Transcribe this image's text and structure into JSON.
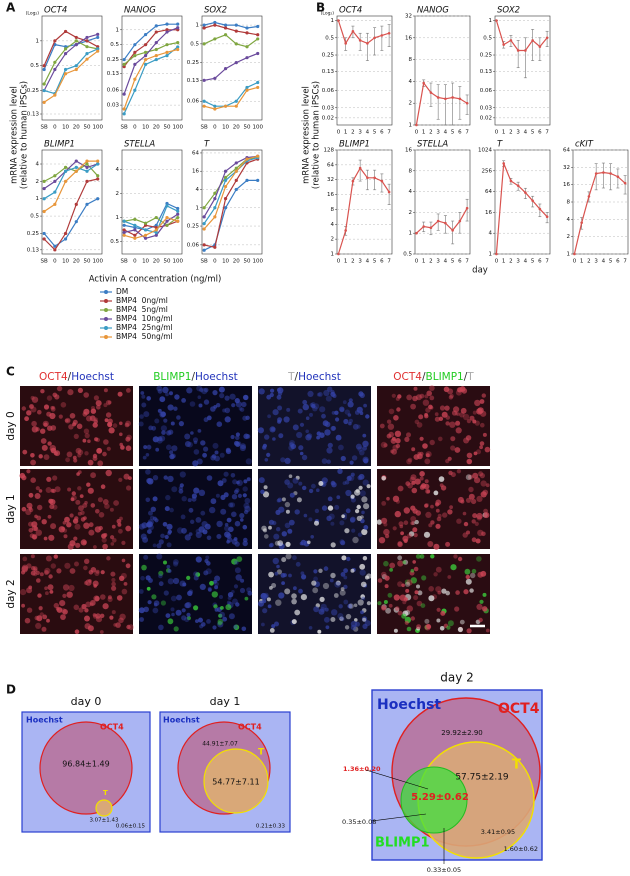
{
  "figure": {
    "panel_labels": [
      "A",
      "B",
      "C",
      "D"
    ],
    "a_y_label": [
      "mRNA expression level",
      "(relative to human iPSCs)"
    ],
    "a_x_label": "Activin A concentration (ng/ml)",
    "b_y_label": [
      "mRNA expression level",
      "(relative to human iPSCs)"
    ],
    "b_x_label": "day"
  },
  "chart_data": [
    {
      "type": "line",
      "title": "OCT4",
      "scale_label": "(Log₂)",
      "log_scale": true,
      "grid": true,
      "categories": [
        "SB",
        "0",
        "10",
        "20",
        "50",
        "100"
      ],
      "ylim": [
        0.11,
        2
      ],
      "yticks": [
        0.13,
        0.25,
        0.5,
        1
      ],
      "series": [
        {
          "name": "DM",
          "color": "#3b7dc4",
          "values": [
            0.45,
            0.9,
            0.85,
            0.9,
            1.0,
            1.1
          ]
        },
        {
          "name": "BMP4  0ng/ml",
          "color": "#b03a3a",
          "values": [
            0.5,
            1.0,
            1.3,
            1.1,
            1.0,
            0.85
          ]
        },
        {
          "name": "BMP4  5ng/ml",
          "color": "#7fa640",
          "values": [
            0.3,
            0.55,
            0.8,
            1.0,
            0.85,
            0.8
          ]
        },
        {
          "name": "BMP4  10ng/ml",
          "color": "#6a4a9c",
          "values": [
            0.25,
            0.45,
            0.7,
            0.9,
            1.1,
            1.2
          ]
        },
        {
          "name": "BMP4  25ng/ml",
          "color": "#3a9cc4",
          "values": [
            0.25,
            0.23,
            0.45,
            0.5,
            0.7,
            0.8
          ]
        },
        {
          "name": "BMP4  50ng/ml",
          "color": "#e8963a",
          "values": [
            0.18,
            0.22,
            0.4,
            0.45,
            0.6,
            0.75
          ]
        }
      ]
    },
    {
      "type": "line",
      "title": "NANOG",
      "log_scale": true,
      "grid": true,
      "categories": [
        "SB",
        "0",
        "10",
        "20",
        "50",
        "100"
      ],
      "ylim": [
        0.015,
        1.9
      ],
      "yticks": [
        0.03,
        0.06,
        0.13,
        0.25,
        0.5,
        1
      ],
      "series": [
        {
          "color": "#3b7dc4",
          "values": [
            0.25,
            0.5,
            0.8,
            1.2,
            1.3,
            1.3
          ]
        },
        {
          "color": "#b03a3a",
          "values": [
            0.18,
            0.35,
            0.5,
            0.9,
            1.0,
            1.0
          ]
        },
        {
          "color": "#7fa640",
          "values": [
            0.2,
            0.3,
            0.35,
            0.4,
            0.5,
            0.55
          ]
        },
        {
          "color": "#6a4a9c",
          "values": [
            0.05,
            0.2,
            0.3,
            0.55,
            0.9,
            1.1
          ]
        },
        {
          "color": "#3a9cc4",
          "values": [
            0.02,
            0.06,
            0.2,
            0.25,
            0.3,
            0.45
          ]
        },
        {
          "color": "#e8963a",
          "values": [
            0.025,
            0.1,
            0.25,
            0.3,
            0.35,
            0.4
          ]
        }
      ]
    },
    {
      "type": "line",
      "title": "SOX2",
      "log_scale": true,
      "grid": true,
      "categories": [
        "SB",
        "0",
        "10",
        "20",
        "50",
        "100"
      ],
      "ylim": [
        0.03,
        1.4
      ],
      "yticks": [
        0.06,
        0.13,
        0.25,
        0.5,
        1
      ],
      "series": [
        {
          "color": "#3b7dc4",
          "values": [
            1.0,
            1.1,
            1.0,
            1.0,
            0.9,
            0.95
          ]
        },
        {
          "color": "#b03a3a",
          "values": [
            0.9,
            1.0,
            0.9,
            0.8,
            0.75,
            0.7
          ]
        },
        {
          "color": "#7fa640",
          "values": [
            0.5,
            0.6,
            0.7,
            0.5,
            0.45,
            0.6
          ]
        },
        {
          "color": "#6a4a9c",
          "values": [
            0.13,
            0.14,
            0.2,
            0.25,
            0.3,
            0.35
          ]
        },
        {
          "color": "#3a9cc4",
          "values": [
            0.06,
            0.05,
            0.05,
            0.06,
            0.1,
            0.12
          ]
        },
        {
          "color": "#e8963a",
          "values": [
            0.05,
            0.045,
            0.05,
            0.05,
            0.09,
            0.1
          ]
        }
      ]
    },
    {
      "type": "line",
      "title": "BLIMP1",
      "log_scale": true,
      "grid": true,
      "categories": [
        "SB",
        "0",
        "10",
        "20",
        "50",
        "100"
      ],
      "ylim": [
        0.11,
        7
      ],
      "yticks": [
        0.13,
        0.25,
        0.5,
        1,
        2,
        4
      ],
      "series": [
        {
          "color": "#3b7dc4",
          "values": [
            0.25,
            0.15,
            0.2,
            0.4,
            0.8,
            1.0
          ]
        },
        {
          "color": "#b03a3a",
          "values": [
            0.2,
            0.13,
            0.25,
            0.8,
            2,
            2.2
          ]
        },
        {
          "color": "#7fa640",
          "values": [
            2,
            2.5,
            3.5,
            3,
            4,
            2.5
          ]
        },
        {
          "color": "#6a4a9c",
          "values": [
            1.5,
            2,
            3,
            4.5,
            3.5,
            4
          ]
        },
        {
          "color": "#3a9cc4",
          "values": [
            1,
            1.3,
            3,
            3.5,
            3,
            4
          ]
        },
        {
          "color": "#e8963a",
          "values": [
            0.6,
            0.8,
            2,
            3,
            4.5,
            4.5
          ]
        }
      ]
    },
    {
      "type": "line",
      "title": "STELLA",
      "log_scale": true,
      "grid": true,
      "categories": [
        "SB",
        "0",
        "10",
        "20",
        "50",
        "100"
      ],
      "ylim": [
        0.35,
        7
      ],
      "yticks": [
        0.5,
        1,
        2,
        4
      ],
      "series": [
        {
          "color": "#3b7dc4",
          "values": [
            0.8,
            0.75,
            0.7,
            0.8,
            1.5,
            1.3
          ]
        },
        {
          "color": "#b03a3a",
          "values": [
            0.7,
            0.6,
            0.8,
            0.75,
            0.8,
            0.9
          ]
        },
        {
          "color": "#7fa640",
          "values": [
            0.9,
            0.95,
            0.85,
            1.0,
            0.8,
            1.0
          ]
        },
        {
          "color": "#6a4a9c",
          "values": [
            0.65,
            0.7,
            0.55,
            0.6,
            0.9,
            1.1
          ]
        },
        {
          "color": "#3a9cc4",
          "values": [
            0.9,
            0.8,
            0.7,
            0.65,
            1.4,
            1.2
          ]
        },
        {
          "color": "#e8963a",
          "values": [
            0.6,
            0.55,
            0.6,
            0.7,
            1.0,
            0.9
          ]
        }
      ]
    },
    {
      "type": "line",
      "title": "T",
      "log_scale": true,
      "grid": true,
      "categories": [
        "SB",
        "0",
        "10",
        "20",
        "50",
        "100"
      ],
      "ylim": [
        0.03,
        80
      ],
      "yticks": [
        0.06,
        0.25,
        1,
        4,
        16,
        64
      ],
      "series": [
        {
          "color": "#3b7dc4",
          "values": [
            0.04,
            0.06,
            1,
            4,
            8,
            8
          ]
        },
        {
          "color": "#b03a3a",
          "values": [
            0.06,
            0.05,
            2,
            8,
            30,
            40
          ]
        },
        {
          "color": "#7fa640",
          "values": [
            1,
            3,
            10,
            20,
            40,
            45
          ]
        },
        {
          "color": "#6a4a9c",
          "values": [
            0.5,
            2,
            16,
            30,
            45,
            50
          ]
        },
        {
          "color": "#3a9cc4",
          "values": [
            0.3,
            1,
            8,
            16,
            35,
            45
          ]
        },
        {
          "color": "#e8963a",
          "values": [
            0.2,
            0.5,
            5,
            16,
            40,
            50
          ]
        }
      ]
    },
    {
      "type": "line",
      "title": "OCT4",
      "scale_label": "(Log₂)",
      "log_scale": true,
      "grid": true,
      "categories": [
        "0",
        "1",
        "2",
        "3",
        "4",
        "5",
        "6",
        "7"
      ],
      "ylim": [
        0.015,
        1.2
      ],
      "yticks": [
        0.02,
        0.03,
        0.06,
        0.13,
        0.25,
        0.5,
        1
      ],
      "series": [
        {
          "color": "#d9534f",
          "values": [
            1,
            0.4,
            0.65,
            0.45,
            0.4,
            0.5,
            0.55,
            0.6
          ],
          "errors": [
            0,
            0.1,
            0.15,
            0.15,
            0.2,
            0.25,
            0.25,
            0.25
          ]
        }
      ]
    },
    {
      "type": "line",
      "title": "NANOG",
      "log_scale": true,
      "grid": true,
      "categories": [
        "0",
        "1",
        "2",
        "3",
        "4",
        "5",
        "6",
        "7"
      ],
      "ylim": [
        1,
        32
      ],
      "yticks": [
        1,
        2,
        4,
        8,
        16,
        32
      ],
      "series": [
        {
          "color": "#d9534f",
          "values": [
            1,
            3.8,
            2.8,
            2.4,
            2.3,
            2.4,
            2.3,
            2
          ],
          "errors": [
            0,
            0.4,
            1,
            1.2,
            1.3,
            1.4,
            1.1,
            0.6
          ]
        }
      ]
    },
    {
      "type": "line",
      "title": "SOX2",
      "log_scale": true,
      "grid": true,
      "categories": [
        "0",
        "1",
        "2",
        "3",
        "4",
        "5",
        "6",
        "7"
      ],
      "ylim": [
        0.015,
        1.2
      ],
      "yticks": [
        0.02,
        0.03,
        0.06,
        0.13,
        0.25,
        0.5,
        1
      ],
      "series": [
        {
          "color": "#d9534f",
          "values": [
            1,
            0.38,
            0.45,
            0.3,
            0.3,
            0.45,
            0.35,
            0.5
          ],
          "errors": [
            0,
            0.05,
            0.1,
            0.15,
            0.2,
            0.25,
            0.15,
            0.15
          ]
        }
      ]
    },
    {
      "type": "line",
      "title": "BLIMP1",
      "log_scale": true,
      "grid": true,
      "categories": [
        "0",
        "1",
        "2",
        "3",
        "4",
        "5",
        "6",
        "7"
      ],
      "ylim": [
        1,
        128
      ],
      "yticks": [
        1,
        2,
        4,
        8,
        16,
        32,
        64,
        128
      ],
      "series": [
        {
          "color": "#d9534f",
          "values": [
            1,
            3,
            30,
            55,
            35,
            35,
            30,
            18
          ],
          "errors": [
            0,
            0.6,
            5,
            25,
            15,
            15,
            12,
            8
          ]
        }
      ]
    },
    {
      "type": "line",
      "title": "STELLA",
      "log_scale": true,
      "grid": true,
      "categories": [
        "0",
        "1",
        "2",
        "3",
        "4",
        "5",
        "6",
        "7"
      ],
      "ylim": [
        0.5,
        16
      ],
      "yticks": [
        0.5,
        1,
        2,
        4,
        8,
        16
      ],
      "series": [
        {
          "color": "#d9534f",
          "values": [
            1,
            1.25,
            1.2,
            1.5,
            1.4,
            1.1,
            1.5,
            2.3
          ],
          "errors": [
            0,
            0.2,
            0.25,
            0.4,
            0.4,
            0.4,
            0.5,
            0.8
          ]
        }
      ]
    },
    {
      "type": "line",
      "title": "T",
      "log_scale": true,
      "grid": true,
      "categories": [
        "0",
        "1",
        "2",
        "3",
        "4",
        "5",
        "6",
        "7"
      ],
      "ylim": [
        1,
        1024
      ],
      "yticks": [
        1,
        4,
        16,
        64,
        256,
        1024
      ],
      "series": [
        {
          "color": "#d9534f",
          "values": [
            1,
            420,
            130,
            95,
            60,
            35,
            20,
            12
          ],
          "errors": [
            0,
            80,
            25,
            25,
            20,
            12,
            8,
            4
          ]
        }
      ]
    },
    {
      "type": "line",
      "title": "cKIT",
      "log_scale": true,
      "grid": true,
      "categories": [
        "0",
        "1",
        "2",
        "3",
        "4",
        "5",
        "6",
        "7"
      ],
      "ylim": [
        1,
        64
      ],
      "yticks": [
        1,
        2,
        4,
        8,
        16,
        32,
        64
      ],
      "series": [
        {
          "color": "#d9534f",
          "values": [
            1,
            3.5,
            10,
            25,
            26,
            25,
            22,
            17
          ],
          "errors": [
            0,
            0.8,
            2,
            12,
            12,
            12,
            8,
            6
          ]
        }
      ]
    }
  ],
  "panel_c": {
    "columns": [
      [
        {
          "text": "OCT4",
          "color": "#e03030"
        },
        {
          "text": "/",
          "color": "#333333"
        },
        {
          "text": "Hoechst",
          "color": "#2233bb"
        }
      ],
      [
        {
          "text": "BLIMP1",
          "color": "#22cc22"
        },
        {
          "text": "/",
          "color": "#333333"
        },
        {
          "text": "Hoechst",
          "color": "#2233bb"
        }
      ],
      [
        {
          "text": "T",
          "color": "#aaaaaa"
        },
        {
          "text": "/",
          "color": "#333333"
        },
        {
          "text": "Hoechst",
          "color": "#2233bb"
        }
      ],
      [
        {
          "text": "OCT4",
          "color": "#e03030"
        },
        {
          "text": "/",
          "color": "#333333"
        },
        {
          "text": "BLIMP1",
          "color": "#22cc22"
        },
        {
          "text": "/",
          "color": "#333333"
        },
        {
          "text": "T",
          "color": "#aaaaaa"
        }
      ]
    ],
    "rows": [
      "day 0",
      "day 1",
      "day 2"
    ]
  },
  "panel_d": {
    "day0": {
      "title": "day 0",
      "hoechst": "Hoechst",
      "oct4": "OCT4",
      "oct4_only": "96.84±1.49",
      "t": "T",
      "t_value": "3.07±1.43",
      "outside": "0.06±0.15"
    },
    "day1": {
      "title": "day 1",
      "hoechst": "Hoechst",
      "oct4": "OCT4",
      "oct4_only": "44.91±7.07",
      "t": "T",
      "t_value": "54.77±7.11",
      "outside": "0.21±0.33"
    },
    "day2": {
      "title": "day 2",
      "hoechst": "Hoechst",
      "oct4": "OCT4",
      "oct4_only": "29.92±2.90",
      "t": "T",
      "oct4_t": "57.75±2.19",
      "oct4_blimp1": "1.36±0.20",
      "triple": "5.29±0.62",
      "blimp1_only": "0.35±0.08",
      "blimp1": "BLIMP1",
      "t_only": "3.41±0.95",
      "outside": "1.60±0.62",
      "blimp1_t": "0.33±0.05"
    }
  }
}
